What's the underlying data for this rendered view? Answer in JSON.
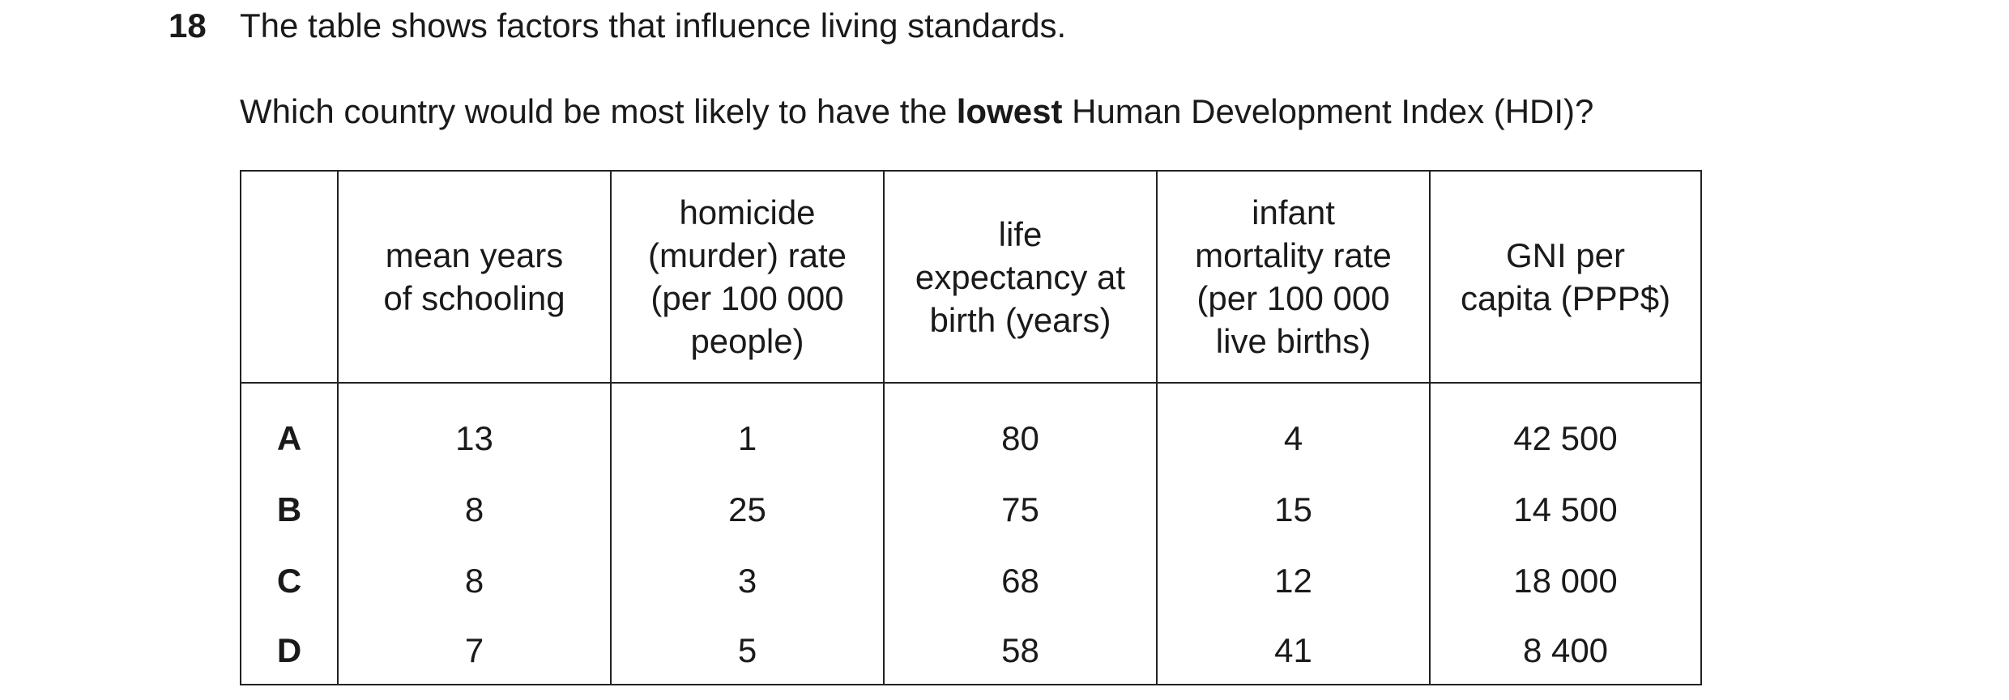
{
  "question": {
    "number": "18",
    "stem": "The table shows factors that influence living standards.",
    "prompt_before": "Which country would be most likely to have the ",
    "prompt_bold": "lowest",
    "prompt_after": " Human Development Index (HDI)?"
  },
  "table": {
    "headers": [
      "",
      "mean years\nof schooling",
      "homicide\n(murder) rate\n(per 100 000\npeople)",
      "life\nexpectancy at\nbirth (years)",
      "infant\nmortality rate\n(per 100 000\nlive births)",
      "GNI per\ncapita (PPP$)"
    ],
    "rows": [
      {
        "key": "A",
        "schooling": "13",
        "homicide": "1",
        "life": "80",
        "infant": "4",
        "gni": "42 500"
      },
      {
        "key": "B",
        "schooling": "8",
        "homicide": "25",
        "life": "75",
        "infant": "15",
        "gni": "14 500"
      },
      {
        "key": "C",
        "schooling": "8",
        "homicide": "3",
        "life": "68",
        "infant": "12",
        "gni": "18 000"
      },
      {
        "key": "D",
        "schooling": "7",
        "homicide": "5",
        "life": "58",
        "infant": "41",
        "gni": "8 400"
      }
    ]
  }
}
